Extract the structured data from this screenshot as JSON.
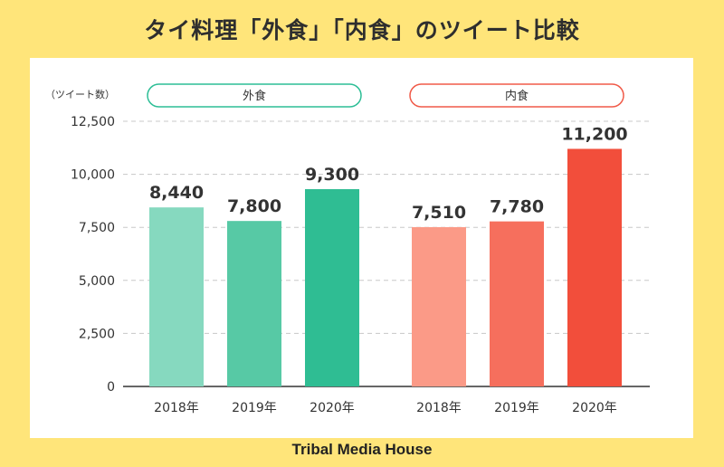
{
  "title": "タイ料理「外食」「内食」のツイート比較",
  "footer": "Tribal Media House",
  "colors": {
    "background": "#FFE57A",
    "outside_accent": "#2DBE96",
    "inside_accent": "#F05A48"
  },
  "chart_data": {
    "type": "bar",
    "ylabel": "（ツイート数）",
    "ylim": [
      0,
      12500
    ],
    "yticks": [
      0,
      2500,
      5000,
      7500,
      10000,
      12500
    ],
    "ytick_labels": [
      "0",
      "2,500",
      "5,000",
      "7,500",
      "10,000",
      "12,500"
    ],
    "grid": true,
    "groups": [
      {
        "name": "外食",
        "categories": [
          "2018年",
          "2019年",
          "2020年"
        ],
        "values": [
          8440,
          7800,
          9300
        ],
        "value_labels": [
          "8,440",
          "7,800",
          "9,300"
        ],
        "colors": [
          "#86D9BF",
          "#57C9A5",
          "#2FBD93"
        ],
        "pill_color": "#2DBE96"
      },
      {
        "name": "内食",
        "categories": [
          "2018年",
          "2019年",
          "2020年"
        ],
        "values": [
          7510,
          7780,
          11200
        ],
        "value_labels": [
          "7,510",
          "7,780",
          "11,200"
        ],
        "colors": [
          "#FB9A87",
          "#F66F5D",
          "#F24E3B"
        ],
        "pill_color": "#F05A48"
      }
    ]
  }
}
